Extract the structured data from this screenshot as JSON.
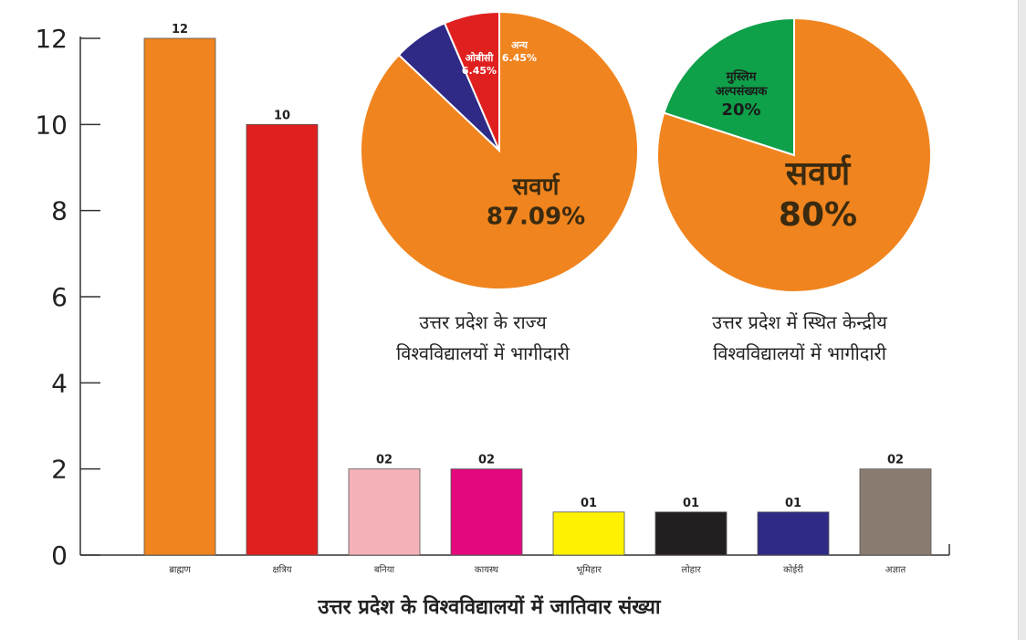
{
  "bar_chart": {
    "type": "bar",
    "title": "उत्तर प्रदेश के विश्वविद्यालयों में जातिवार संख्या",
    "categories": [
      "ब्राह्मण",
      "क्षत्रिय",
      "बनिया",
      "कायस्थ",
      "भूमिहार",
      "लोहार",
      "कोईरी",
      "अज्ञात"
    ],
    "values": [
      12,
      10,
      2,
      2,
      1,
      1,
      1,
      2
    ],
    "value_labels": [
      "12",
      "10",
      "02",
      "02",
      "01",
      "01",
      "01",
      "02"
    ],
    "colors": [
      "#f0841e",
      "#e0201f",
      "#f4b2b8",
      "#e4077e",
      "#fff200",
      "#231f20",
      "#2e2a86",
      "#8a7b71"
    ],
    "ylim": [
      0,
      12
    ],
    "yticks": [
      "0",
      "2",
      "4",
      "6",
      "8",
      "10",
      "12"
    ],
    "grid": false,
    "xlabel": "",
    "ylabel": ""
  },
  "pies": [
    {
      "type": "pie",
      "caption_line1": "उत्तर प्रदेश के राज्य",
      "caption_line2": "विश्वविद्यालयों में भागीदारी",
      "slices": [
        {
          "label": "सवर्ण",
          "value": 87.09,
          "value_label": "87.09%",
          "color": "#f0841e"
        },
        {
          "label": "ओबीसी",
          "value": 6.45,
          "value_label": "6.45%",
          "color": "#2e2a86"
        },
        {
          "label": "अन्य",
          "value": 6.45,
          "value_label": "6.45%",
          "color": "#e0201f"
        }
      ]
    },
    {
      "type": "pie",
      "caption_line1": "उत्तर प्रदेश में स्थित केन्द्रीय",
      "caption_line2": "विश्वविद्यालयों में भागीदारी",
      "slices": [
        {
          "label": "सवर्ण",
          "value": 80,
          "value_label": "80%",
          "color": "#f0841e"
        },
        {
          "label": "मुस्लिम अल्पसंख्यक",
          "value": 20,
          "value_label": "20%",
          "color": "#0fa04a"
        }
      ]
    }
  ],
  "chart_data": [
    {
      "type": "bar",
      "title": "उत्तर प्रदेश के विश्वविद्यालयों में जातिवार संख्या",
      "categories": [
        "ब्राह्मण",
        "क्षत्रिय",
        "बनिया",
        "कायस्थ",
        "भूमिहार",
        "लोहार",
        "कोईरी",
        "अज्ञात"
      ],
      "values": [
        12,
        10,
        2,
        2,
        1,
        1,
        1,
        2
      ],
      "ylim": [
        0,
        12
      ]
    },
    {
      "type": "pie",
      "title": "उत्तर प्रदेश के राज्य विश्वविद्यालयों में भागीदारी",
      "labels": [
        "सवर्ण",
        "ओबीसी",
        "अन्य"
      ],
      "values": [
        87.09,
        6.45,
        6.45
      ]
    },
    {
      "type": "pie",
      "title": "उत्तर प्रदेश में स्थित केन्द्रीय विश्वविद्यालयों में भागीदारी",
      "labels": [
        "सवर्ण",
        "मुस्लिम अल्पसंख्यक"
      ],
      "values": [
        80,
        20
      ]
    }
  ]
}
